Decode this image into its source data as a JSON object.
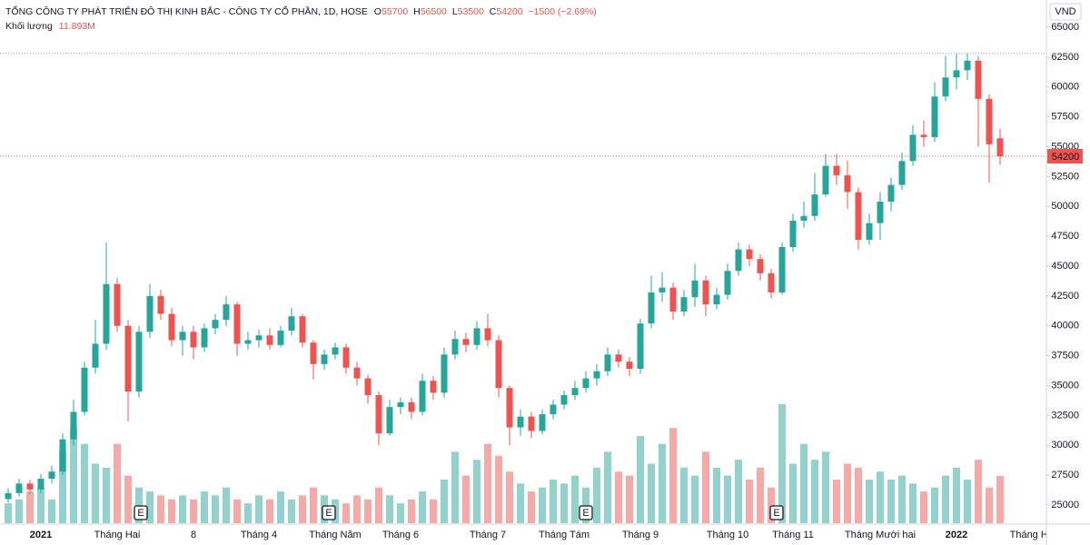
{
  "chart_data": {
    "type": "candlestick",
    "title": "TỔNG CÔNG TY PHÁT TRIỂN ĐÔ THỊ KINH BẮC - CÔNG TY CỔ PHẦN, 1D, HOSE",
    "ohlc_labels": [
      "O",
      "H",
      "L",
      "C"
    ],
    "change_label": "−1500 (−2.69%)",
    "volume_title": "Khối lượng",
    "volume_label": "11.893M",
    "currency": "VND",
    "event_markers": [
      "E",
      "E",
      "E",
      "E"
    ],
    "up_color": "#26a69a",
    "down_color": "#ef5350",
    "categories": [
      null,
      null,
      null,
      "2021",
      null,
      null,
      null,
      null,
      null,
      null,
      "Tháng Hai",
      null,
      null,
      null,
      null,
      null,
      null,
      "8",
      null,
      null,
      null,
      null,
      null,
      "Tháng 4",
      null,
      null,
      null,
      null,
      null,
      null,
      "Tháng Năm",
      null,
      null,
      null,
      null,
      null,
      "Tháng 6",
      null,
      null,
      null,
      null,
      null,
      null,
      null,
      "Tháng 7",
      null,
      null,
      null,
      null,
      null,
      null,
      "Tháng Tám",
      null,
      null,
      null,
      null,
      null,
      null,
      "Tháng 9",
      null,
      null,
      null,
      null,
      null,
      null,
      null,
      "Tháng 10",
      null,
      null,
      null,
      null,
      null,
      "Tháng 11",
      null,
      null,
      null,
      null,
      null,
      null,
      null,
      "Tháng Mười hai",
      null,
      null,
      null,
      null,
      null,
      null,
      "2022",
      null,
      null,
      null,
      null,
      null,
      null,
      "Tháng Hai"
    ],
    "open": [
      25500,
      26000,
      26800,
      26300,
      27200,
      27800,
      30500,
      32800,
      36500,
      38500,
      43500,
      40000,
      34500,
      39500,
      42500,
      41000,
      38800,
      39500,
      38200,
      39800,
      40500,
      41800,
      38500,
      38800,
      39200,
      38400,
      39600,
      40800,
      38600,
      36800,
      37600,
      38200,
      36500,
      35600,
      34200,
      31000,
      33200,
      33600,
      32800,
      35400,
      34400,
      37600,
      38900,
      38400,
      39800,
      38800,
      34800,
      31500,
      32400,
      31200,
      32600,
      33400,
      34200,
      34800,
      35600,
      36200,
      37600,
      37000,
      36400,
      40200,
      42800,
      43200,
      41200,
      42400,
      43800,
      41800,
      42600,
      44600,
      46400,
      45600,
      44400,
      42800,
      46600,
      48800,
      49200,
      51000,
      53400,
      52600,
      51200,
      47200,
      48600,
      50400,
      51800,
      53800,
      56000,
      55800,
      59200,
      60800,
      61400,
      62200,
      59000,
      55700,
      null,
      null,
      null
    ],
    "high": [
      26400,
      27200,
      27100,
      27600,
      28300,
      31000,
      33800,
      37000,
      40500,
      47000,
      44000,
      40500,
      40000,
      43500,
      43000,
      41500,
      40000,
      40000,
      40200,
      41000,
      42500,
      42000,
      39500,
      39700,
      39800,
      40000,
      41500,
      41000,
      38800,
      38000,
      38600,
      38500,
      37000,
      35900,
      34500,
      33800,
      34000,
      34000,
      36000,
      35800,
      38200,
      39600,
      39400,
      40400,
      41000,
      39200,
      35000,
      33000,
      32800,
      33000,
      33800,
      34600,
      35400,
      36200,
      36800,
      38200,
      38000,
      37400,
      40600,
      44200,
      44500,
      43600,
      43000,
      45200,
      44200,
      43200,
      45200,
      47000,
      46800,
      46000,
      44800,
      47000,
      49400,
      50400,
      52800,
      54400,
      54400,
      53800,
      51600,
      49400,
      51200,
      52400,
      54500,
      56800,
      57200,
      60400,
      62600,
      62800,
      62800,
      62600,
      59400,
      56500,
      null,
      null,
      null
    ],
    "low": [
      25200,
      25700,
      25900,
      26000,
      26800,
      27500,
      30000,
      32500,
      36000,
      38000,
      39500,
      32000,
      34000,
      39000,
      40500,
      38300,
      37500,
      37200,
      37800,
      39300,
      40000,
      37500,
      38000,
      38200,
      38000,
      38200,
      39200,
      38200,
      35500,
      36300,
      37200,
      36000,
      35000,
      33500,
      30000,
      30800,
      32600,
      32200,
      32500,
      33800,
      34000,
      37200,
      37800,
      38000,
      38300,
      34000,
      30000,
      30800,
      30600,
      30900,
      32200,
      33000,
      33800,
      34400,
      35000,
      35800,
      36500,
      35800,
      36000,
      39800,
      42000,
      40500,
      40800,
      41600,
      40800,
      41400,
      42200,
      44200,
      45000,
      43800,
      42300,
      42600,
      46200,
      48200,
      48800,
      50800,
      51800,
      49800,
      46400,
      46800,
      47200,
      49600,
      51400,
      53400,
      55000,
      55400,
      58800,
      59800,
      60600,
      55000,
      52000,
      53500,
      null,
      null,
      null
    ],
    "close": [
      26000,
      26800,
      26300,
      27200,
      27800,
      30500,
      32800,
      36500,
      38500,
      43500,
      40000,
      34500,
      39500,
      42500,
      41000,
      38800,
      39500,
      38200,
      39800,
      40500,
      41800,
      38500,
      38800,
      39200,
      38400,
      39600,
      40800,
      38600,
      36800,
      37600,
      38200,
      36500,
      35600,
      34200,
      31000,
      33200,
      33600,
      32800,
      35400,
      34400,
      37600,
      38900,
      38400,
      39800,
      38800,
      34800,
      31500,
      32400,
      31200,
      32600,
      33400,
      34200,
      34800,
      35600,
      36200,
      37600,
      37000,
      36400,
      40200,
      42800,
      43200,
      41200,
      42400,
      43800,
      41800,
      42600,
      44600,
      46400,
      45600,
      44400,
      42800,
      46600,
      48800,
      49200,
      51000,
      53400,
      52600,
      51200,
      47200,
      48600,
      50400,
      51800,
      53800,
      56000,
      55800,
      59200,
      60800,
      61400,
      62200,
      59000,
      55200,
      54200,
      null,
      null,
      null
    ],
    "volume": [
      5,
      6,
      8,
      9,
      6,
      18,
      24,
      20,
      15,
      14,
      20,
      12,
      9,
      8,
      7,
      6,
      7,
      6,
      8,
      7,
      9,
      6,
      5,
      7,
      6,
      8,
      6,
      7,
      9,
      7,
      6,
      5,
      7,
      6,
      9,
      7,
      5,
      6,
      8,
      6,
      11,
      18,
      12,
      16,
      20,
      17,
      13,
      10,
      8,
      9,
      11,
      10,
      12,
      9,
      14,
      18,
      13,
      12,
      22,
      15,
      20,
      24,
      14,
      12,
      18,
      14,
      12,
      16,
      11,
      14,
      9,
      30,
      15,
      20,
      16,
      18,
      11,
      15,
      14,
      11,
      13,
      11,
      12,
      10,
      8,
      9,
      12,
      14,
      11,
      16,
      9,
      11.893,
      null,
      null,
      null
    ],
    "ylim": [
      25000,
      65000
    ],
    "yticks": [
      25000,
      27500,
      30000,
      32500,
      35000,
      37500,
      40000,
      42500,
      45000,
      47500,
      50000,
      52500,
      55000,
      57500,
      60000,
      62500,
      65000
    ],
    "grid": false
  }
}
